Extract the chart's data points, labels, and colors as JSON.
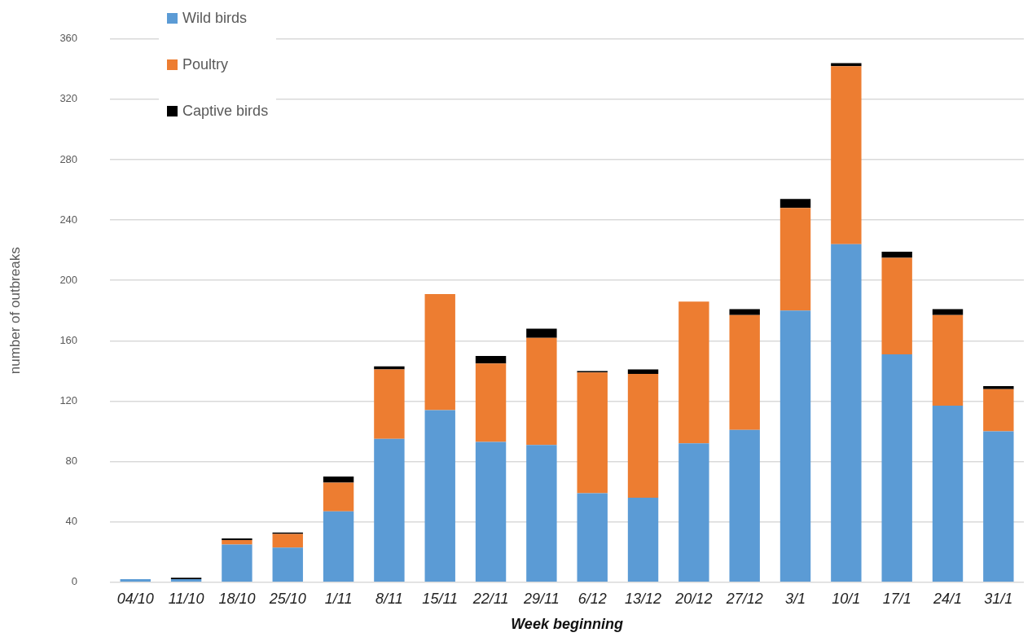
{
  "chart_data": {
    "type": "bar",
    "stacked": true,
    "xlabel": "Week beginning",
    "ylabel": "number of outbreaks",
    "categories": [
      "04/10",
      "11/10",
      "18/10",
      "25/10",
      "1/11",
      "8/11",
      "15/11",
      "22/11",
      "29/11",
      "6/12",
      "13/12",
      "20/12",
      "27/12",
      "3/1",
      "10/1",
      "17/1",
      "24/1",
      "31/1"
    ],
    "series": [
      {
        "name": "Wild birds",
        "color": "#5b9bd5",
        "values": [
          2,
          2,
          25,
          23,
          47,
          95,
          114,
          93,
          91,
          59,
          56,
          92,
          101,
          180,
          224,
          151,
          117,
          100
        ]
      },
      {
        "name": "Poultry",
        "color": "#ed7d31",
        "values": [
          0,
          0,
          3,
          9,
          19,
          46,
          77,
          52,
          71,
          80,
          82,
          94,
          76,
          68,
          118,
          64,
          60,
          28
        ]
      },
      {
        "name": "Captive birds",
        "color": "#000000",
        "values": [
          0,
          1,
          1,
          1,
          4,
          2,
          0,
          5,
          6,
          1,
          3,
          0,
          4,
          6,
          2,
          4,
          4,
          2
        ]
      }
    ],
    "ylim": [
      0,
      360
    ],
    "yticks": [
      0,
      40,
      80,
      120,
      160,
      200,
      240,
      280,
      320,
      360
    ],
    "grid": "y",
    "legend": "top left"
  }
}
